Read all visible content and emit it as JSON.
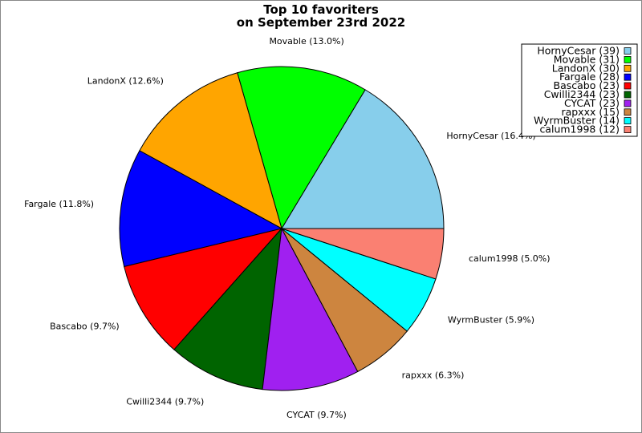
{
  "chart_data": {
    "type": "pie",
    "title_line1": "Top 10 favoriters",
    "title_line2": "on September 23rd 2022",
    "start_angle_deg": 0,
    "direction": "counterclockwise",
    "legend_placement": "top-right",
    "slices": [
      {
        "name": "HornyCesar",
        "count": 39,
        "percent": "16.4%",
        "label": "HornyCesar (16.4%)",
        "legend": "HornyCesar (39)",
        "color": "#87ceeb"
      },
      {
        "name": "Movable",
        "count": 31,
        "percent": "13.0%",
        "label": "Movable (13.0%)",
        "legend": "Movable (31)",
        "color": "#00ff00"
      },
      {
        "name": "LandonX",
        "count": 30,
        "percent": "12.6%",
        "label": "LandonX (12.6%)",
        "legend": "LandonX (30)",
        "color": "#ffa500"
      },
      {
        "name": "Fargale",
        "count": 28,
        "percent": "11.8%",
        "label": "Fargale (11.8%)",
        "legend": "Fargale (28)",
        "color": "#0000ff"
      },
      {
        "name": "Bascabo",
        "count": 23,
        "percent": "9.7%",
        "label": "Bascabo (9.7%)",
        "legend": "Bascabo (23)",
        "color": "#ff0000"
      },
      {
        "name": "Cwilli2344",
        "count": 23,
        "percent": "9.7%",
        "label": "Cwilli2344 (9.7%)",
        "legend": "Cwilli2344 (23)",
        "color": "#006400"
      },
      {
        "name": "CYCAT",
        "count": 23,
        "percent": "9.7%",
        "label": "CYCAT (9.7%)",
        "legend": "CYCAT (23)",
        "color": "#a020f0"
      },
      {
        "name": "rapxxx",
        "count": 15,
        "percent": "6.3%",
        "label": "rapxxx (6.3%)",
        "legend": "rapxxx (15)",
        "color": "#cd853f"
      },
      {
        "name": "WyrmBuster",
        "count": 14,
        "percent": "5.9%",
        "label": "WyrmBuster (5.9%)",
        "legend": "WyrmBuster (14)",
        "color": "#00ffff"
      },
      {
        "name": "calum1998",
        "count": 12,
        "percent": "5.0%",
        "label": "calum1998 (5.0%)",
        "legend": "calum1998 (12)",
        "color": "#fa8072"
      }
    ]
  }
}
